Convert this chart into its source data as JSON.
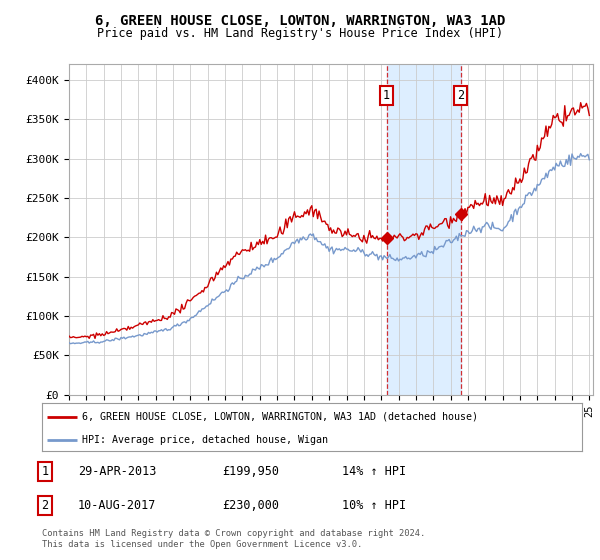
{
  "title": "6, GREEN HOUSE CLOSE, LOWTON, WARRINGTON, WA3 1AD",
  "subtitle": "Price paid vs. HM Land Registry's House Price Index (HPI)",
  "title_fontsize": 10,
  "subtitle_fontsize": 8.5,
  "ylabel_ticks": [
    "£0",
    "£50K",
    "£100K",
    "£150K",
    "£200K",
    "£250K",
    "£300K",
    "£350K",
    "£400K"
  ],
  "ytick_values": [
    0,
    50000,
    100000,
    150000,
    200000,
    250000,
    300000,
    350000,
    400000
  ],
  "ylim": [
    0,
    420000
  ],
  "xlim_start": 1995.0,
  "xlim_end": 2025.2,
  "background_color": "#ffffff",
  "plot_bg_color": "#ffffff",
  "grid_color": "#cccccc",
  "marker1_date": 2013.31,
  "marker1_value": 199950,
  "marker2_date": 2017.6,
  "marker2_value": 230000,
  "shade_start": 2013.31,
  "shade_end": 2017.6,
  "red_line_color": "#cc0000",
  "blue_line_color": "#7799cc",
  "shade_color": "#ddeeff",
  "annotation1": [
    "1",
    "29-APR-2013",
    "£199,950",
    "14% ↑ HPI"
  ],
  "annotation2": [
    "2",
    "10-AUG-2017",
    "£230,000",
    "10% ↑ HPI"
  ],
  "legend_line1": "6, GREEN HOUSE CLOSE, LOWTON, WARRINGTON, WA3 1AD (detached house)",
  "legend_line2": "HPI: Average price, detached house, Wigan",
  "footer": "Contains HM Land Registry data © Crown copyright and database right 2024.\nThis data is licensed under the Open Government Licence v3.0."
}
